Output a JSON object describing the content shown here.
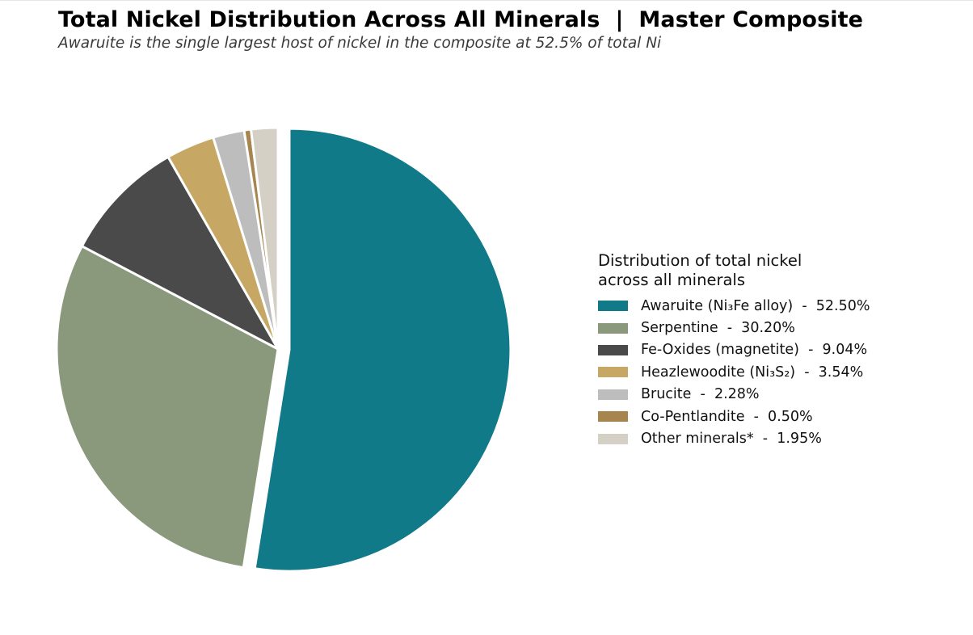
{
  "chart_data": {
    "type": "pie",
    "title": "Total Nickel Distribution Across All Minerals  |  Master Composite",
    "subtitle": "Awaruite is the single largest host of nickel in the composite at 52.5% of total Ni",
    "legend": {
      "title": "Distribution of total nickel across all minerals",
      "placement": "right"
    },
    "slices": [
      {
        "label": "Awaruite (Ni₃Fe alloy)  -  52.50%",
        "name": "Awaruite (Ni₃Fe alloy)",
        "value": 52.5,
        "color": "#107a89",
        "exploded": true
      },
      {
        "label": "Serpentine  -  30.20%",
        "name": "Serpentine",
        "value": 30.2,
        "color": "#8a987b",
        "exploded": false
      },
      {
        "label": "Fe-Oxides (magnetite)  -  9.04%",
        "name": "Fe-Oxides (magnetite)",
        "value": 9.04,
        "color": "#4a4a4a",
        "exploded": false
      },
      {
        "label": "Heazlewoodite (Ni₃S₂)  -  3.54%",
        "name": "Heazlewoodite (Ni₃S₂)",
        "value": 3.54,
        "color": "#c6a763",
        "exploded": false
      },
      {
        "label": "Brucite  -  2.28%",
        "name": "Brucite",
        "value": 2.28,
        "color": "#bdbdbd",
        "exploded": false
      },
      {
        "label": "Co-Pentlandite  -  0.50%",
        "name": "Co-Pentlandite",
        "value": 0.5,
        "color": "#a6854e",
        "exploded": false
      },
      {
        "label": "Other minerals*  -  1.95%",
        "name": "Other minerals*",
        "value": 1.95,
        "color": "#d5d0c5",
        "exploded": false
      }
    ]
  }
}
